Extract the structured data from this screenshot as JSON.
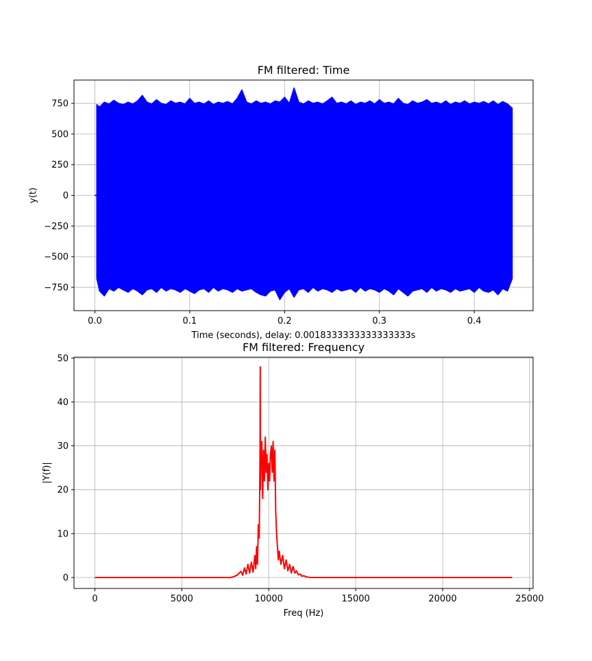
{
  "chart_data": [
    {
      "type": "line",
      "title": "FM filtered: Time",
      "xlabel": "Time (seconds), delay: 0.0018333333333333333s",
      "ylabel": "y(t)",
      "xlim": [
        -0.022,
        0.462
      ],
      "ylim": [
        -940,
        940
      ],
      "grid": true,
      "xticks": [
        0.0,
        0.1,
        0.2,
        0.3,
        0.4
      ],
      "xtick_labels": [
        "0.0",
        "0.1",
        "0.2",
        "0.3",
        "0.4"
      ],
      "yticks": [
        750,
        500,
        250,
        0,
        -250,
        -500,
        -750
      ],
      "ytick_labels": [
        "750",
        "500",
        "250",
        "0",
        "−250",
        "−500",
        "−750"
      ],
      "series": [
        {
          "color": "#0000ff",
          "signal_start": 0.0018333333333333333,
          "x_end": 0.44,
          "upper_envelope": [
            [
              0.002,
              740
            ],
            [
              0.005,
              720
            ],
            [
              0.01,
              760
            ],
            [
              0.015,
              745
            ],
            [
              0.02,
              775
            ],
            [
              0.025,
              750
            ],
            [
              0.03,
              740
            ],
            [
              0.035,
              760
            ],
            [
              0.04,
              745
            ],
            [
              0.045,
              770
            ],
            [
              0.05,
              815
            ],
            [
              0.055,
              760
            ],
            [
              0.06,
              745
            ],
            [
              0.065,
              780
            ],
            [
              0.07,
              750
            ],
            [
              0.075,
              740
            ],
            [
              0.08,
              770
            ],
            [
              0.085,
              750
            ],
            [
              0.09,
              760
            ],
            [
              0.095,
              745
            ],
            [
              0.1,
              790
            ],
            [
              0.105,
              750
            ],
            [
              0.11,
              760
            ],
            [
              0.115,
              745
            ],
            [
              0.12,
              770
            ],
            [
              0.125,
              740
            ],
            [
              0.13,
              760
            ],
            [
              0.135,
              750
            ],
            [
              0.14,
              765
            ],
            [
              0.145,
              745
            ],
            [
              0.15,
              790
            ],
            [
              0.155,
              860
            ],
            [
              0.16,
              760
            ],
            [
              0.165,
              745
            ],
            [
              0.17,
              770
            ],
            [
              0.175,
              750
            ],
            [
              0.18,
              760
            ],
            [
              0.185,
              745
            ],
            [
              0.19,
              770
            ],
            [
              0.195,
              760
            ],
            [
              0.2,
              800
            ],
            [
              0.205,
              750
            ],
            [
              0.21,
              875
            ],
            [
              0.215,
              760
            ],
            [
              0.22,
              745
            ],
            [
              0.225,
              770
            ],
            [
              0.23,
              750
            ],
            [
              0.235,
              760
            ],
            [
              0.24,
              745
            ],
            [
              0.245,
              770
            ],
            [
              0.25,
              800
            ],
            [
              0.255,
              750
            ],
            [
              0.26,
              760
            ],
            [
              0.265,
              745
            ],
            [
              0.27,
              770
            ],
            [
              0.275,
              740
            ],
            [
              0.28,
              760
            ],
            [
              0.285,
              750
            ],
            [
              0.29,
              770
            ],
            [
              0.295,
              745
            ],
            [
              0.3,
              780
            ],
            [
              0.305,
              750
            ],
            [
              0.31,
              760
            ],
            [
              0.315,
              745
            ],
            [
              0.32,
              790
            ],
            [
              0.325,
              750
            ],
            [
              0.33,
              740
            ],
            [
              0.335,
              770
            ],
            [
              0.34,
              750
            ],
            [
              0.345,
              760
            ],
            [
              0.35,
              780
            ],
            [
              0.355,
              750
            ],
            [
              0.36,
              760
            ],
            [
              0.365,
              745
            ],
            [
              0.37,
              770
            ],
            [
              0.375,
              740
            ],
            [
              0.38,
              760
            ],
            [
              0.385,
              750
            ],
            [
              0.39,
              770
            ],
            [
              0.395,
              745
            ],
            [
              0.4,
              760
            ],
            [
              0.405,
              750
            ],
            [
              0.41,
              765
            ],
            [
              0.415,
              745
            ],
            [
              0.42,
              770
            ],
            [
              0.425,
              740
            ],
            [
              0.43,
              765
            ],
            [
              0.435,
              745
            ],
            [
              0.44,
              710
            ]
          ],
          "lower_envelope": [
            [
              0.002,
              -680
            ],
            [
              0.005,
              -780
            ],
            [
              0.01,
              -820
            ],
            [
              0.015,
              -760
            ],
            [
              0.02,
              -780
            ],
            [
              0.025,
              -750
            ],
            [
              0.03,
              -770
            ],
            [
              0.035,
              -790
            ],
            [
              0.04,
              -760
            ],
            [
              0.045,
              -780
            ],
            [
              0.05,
              -810
            ],
            [
              0.055,
              -770
            ],
            [
              0.06,
              -760
            ],
            [
              0.065,
              -790
            ],
            [
              0.07,
              -750
            ],
            [
              0.075,
              -780
            ],
            [
              0.08,
              -760
            ],
            [
              0.085,
              -770
            ],
            [
              0.09,
              -790
            ],
            [
              0.095,
              -760
            ],
            [
              0.1,
              -780
            ],
            [
              0.105,
              -800
            ],
            [
              0.11,
              -770
            ],
            [
              0.115,
              -760
            ],
            [
              0.12,
              -790
            ],
            [
              0.125,
              -750
            ],
            [
              0.13,
              -780
            ],
            [
              0.135,
              -760
            ],
            [
              0.14,
              -770
            ],
            [
              0.145,
              -790
            ],
            [
              0.15,
              -760
            ],
            [
              0.155,
              -780
            ],
            [
              0.16,
              -770
            ],
            [
              0.165,
              -760
            ],
            [
              0.17,
              -790
            ],
            [
              0.175,
              -810
            ],
            [
              0.18,
              -820
            ],
            [
              0.185,
              -780
            ],
            [
              0.19,
              -770
            ],
            [
              0.195,
              -850
            ],
            [
              0.2,
              -790
            ],
            [
              0.205,
              -760
            ],
            [
              0.21,
              -830
            ],
            [
              0.215,
              -770
            ],
            [
              0.22,
              -760
            ],
            [
              0.225,
              -790
            ],
            [
              0.23,
              -750
            ],
            [
              0.235,
              -780
            ],
            [
              0.24,
              -760
            ],
            [
              0.245,
              -770
            ],
            [
              0.25,
              -790
            ],
            [
              0.255,
              -760
            ],
            [
              0.26,
              -780
            ],
            [
              0.265,
              -770
            ],
            [
              0.27,
              -760
            ],
            [
              0.275,
              -790
            ],
            [
              0.28,
              -750
            ],
            [
              0.285,
              -780
            ],
            [
              0.29,
              -760
            ],
            [
              0.295,
              -770
            ],
            [
              0.3,
              -790
            ],
            [
              0.305,
              -760
            ],
            [
              0.31,
              -780
            ],
            [
              0.315,
              -810
            ],
            [
              0.32,
              -760
            ],
            [
              0.325,
              -790
            ],
            [
              0.33,
              -820
            ],
            [
              0.335,
              -780
            ],
            [
              0.34,
              -770
            ],
            [
              0.345,
              -760
            ],
            [
              0.35,
              -790
            ],
            [
              0.355,
              -750
            ],
            [
              0.36,
              -780
            ],
            [
              0.365,
              -760
            ],
            [
              0.37,
              -770
            ],
            [
              0.375,
              -790
            ],
            [
              0.38,
              -760
            ],
            [
              0.385,
              -780
            ],
            [
              0.39,
              -770
            ],
            [
              0.395,
              -760
            ],
            [
              0.4,
              -790
            ],
            [
              0.405,
              -750
            ],
            [
              0.41,
              -780
            ],
            [
              0.415,
              -790
            ],
            [
              0.42,
              -770
            ],
            [
              0.425,
              -810
            ],
            [
              0.43,
              -760
            ],
            [
              0.435,
              -780
            ],
            [
              0.44,
              -680
            ]
          ]
        }
      ]
    },
    {
      "type": "line",
      "title": "FM filtered: Frequency",
      "xlabel": "Freq (Hz)",
      "ylabel": "|Y(f)|",
      "xlim": [
        -1200,
        25200
      ],
      "ylim": [
        -2.5,
        50.2
      ],
      "grid": true,
      "xticks": [
        0,
        5000,
        10000,
        15000,
        20000,
        25000
      ],
      "xtick_labels": [
        "0",
        "5000",
        "10000",
        "15000",
        "20000",
        "25000"
      ],
      "yticks": [
        0,
        10,
        20,
        30,
        40,
        50
      ],
      "ytick_labels": [
        "0",
        "10",
        "20",
        "30",
        "40",
        "50"
      ],
      "series": [
        {
          "color": "#ff0000",
          "points": [
            [
              0,
              0
            ],
            [
              7800,
              0
            ],
            [
              8000,
              0.2
            ],
            [
              8200,
              0.6
            ],
            [
              8400,
              1.4
            ],
            [
              8500,
              0.5
            ],
            [
              8600,
              2.2
            ],
            [
              8700,
              0.8
            ],
            [
              8800,
              3.0
            ],
            [
              8900,
              1.0
            ],
            [
              9000,
              3.5
            ],
            [
              9100,
              1.2
            ],
            [
              9200,
              5.0
            ],
            [
              9250,
              2.0
            ],
            [
              9300,
              7.0
            ],
            [
              9350,
              3.0
            ],
            [
              9400,
              12.0
            ],
            [
              9450,
              9.0
            ],
            [
              9480,
              20.0
            ],
            [
              9500,
              30.0
            ],
            [
              9510,
              48.0
            ],
            [
              9520,
              20.0
            ],
            [
              9560,
              28.0
            ],
            [
              9600,
              31.0
            ],
            [
              9650,
              18.0
            ],
            [
              9700,
              29.0
            ],
            [
              9750,
              22.0
            ],
            [
              9800,
              32.0
            ],
            [
              9850,
              24.0
            ],
            [
              9900,
              28.0
            ],
            [
              9950,
              20.0
            ],
            [
              10000,
              26.0
            ],
            [
              10050,
              22.0
            ],
            [
              10100,
              28.0
            ],
            [
              10150,
              30.0
            ],
            [
              10200,
              24.0
            ],
            [
              10250,
              31.0
            ],
            [
              10300,
              22.0
            ],
            [
              10350,
              29.0
            ],
            [
              10400,
              15.0
            ],
            [
              10450,
              10.0
            ],
            [
              10500,
              7.0
            ],
            [
              10550,
              4.0
            ],
            [
              10600,
              6.0
            ],
            [
              10700,
              3.0
            ],
            [
              10800,
              5.0
            ],
            [
              10900,
              2.0
            ],
            [
              11000,
              4.0
            ],
            [
              11100,
              1.5
            ],
            [
              11200,
              3.0
            ],
            [
              11300,
              1.0
            ],
            [
              11400,
              2.5
            ],
            [
              11500,
              1.0
            ],
            [
              11600,
              1.5
            ],
            [
              11700,
              0.6
            ],
            [
              11800,
              0.8
            ],
            [
              11900,
              0.3
            ],
            [
              12000,
              0.4
            ],
            [
              12200,
              0.1
            ],
            [
              12400,
              0
            ],
            [
              24000,
              0
            ]
          ]
        }
      ]
    }
  ]
}
